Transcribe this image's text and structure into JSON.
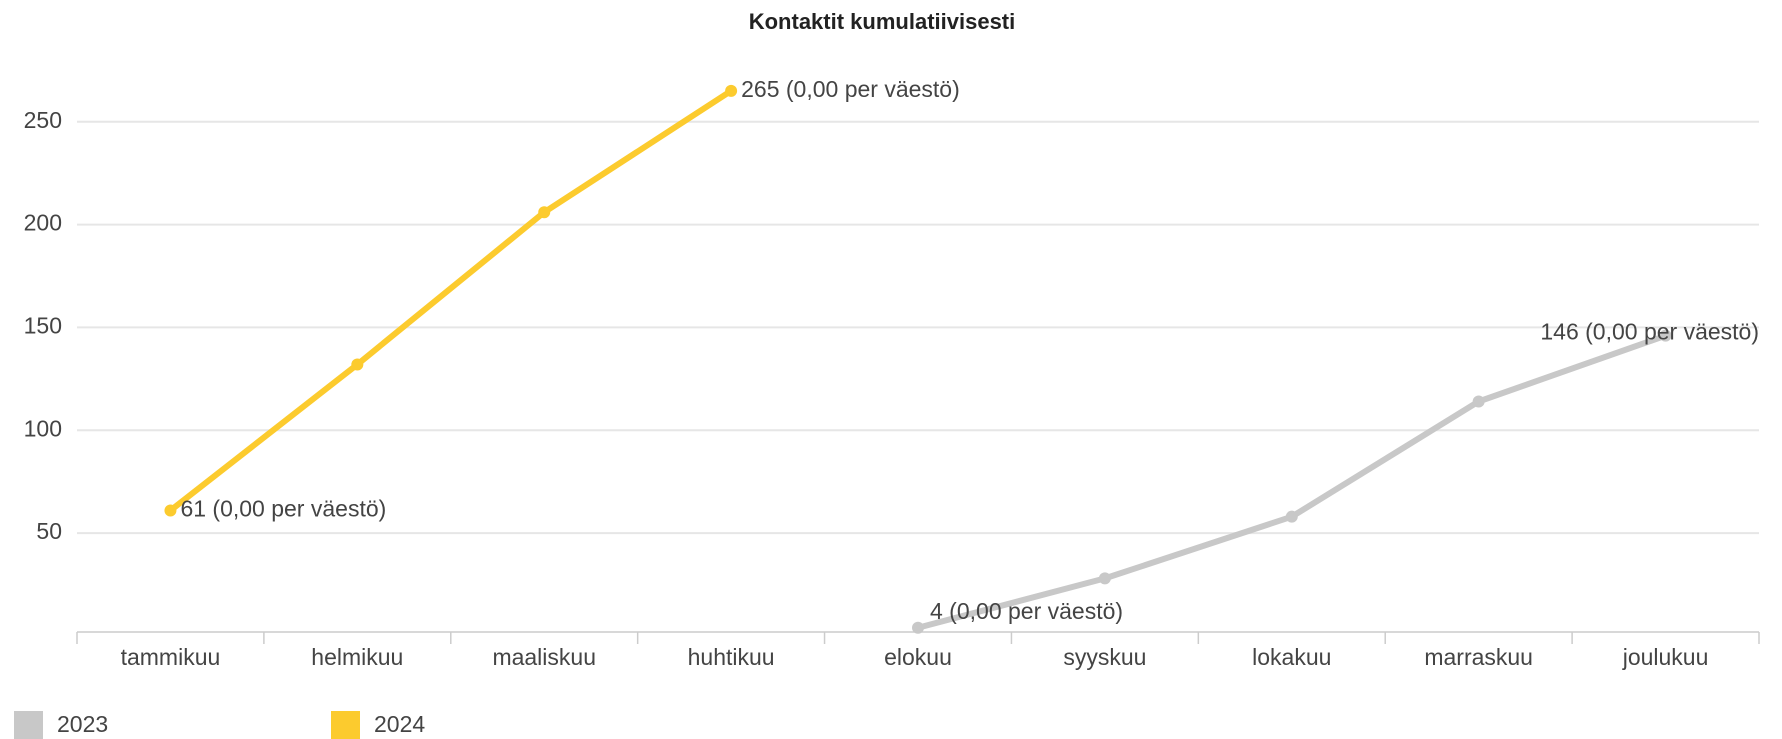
{
  "chart_data": {
    "type": "line",
    "title": "Kontaktit kumulatiivisesti",
    "categories": [
      "tammikuu",
      "helmikuu",
      "maaliskuu",
      "huhtikuu",
      "elokuu",
      "syyskuu",
      "lokakuu",
      "marraskuu",
      "joulukuu"
    ],
    "series": [
      {
        "name": "2023",
        "color": "#c8c8c8",
        "values": [
          null,
          null,
          null,
          null,
          4,
          28,
          58,
          114,
          146
        ],
        "value_labels": [
          null,
          null,
          null,
          null,
          "4 (0,00 per väestö)",
          null,
          null,
          null,
          "146 (0,00 per väestö)"
        ]
      },
      {
        "name": "2024",
        "color": "#fccb2e",
        "values": [
          61,
          132,
          206,
          265,
          null,
          null,
          null,
          null,
          null
        ],
        "value_labels": [
          "61 (0,00 per väestö)",
          null,
          null,
          "265 (0,00 per väestö)",
          null,
          null,
          null,
          null,
          null
        ]
      }
    ],
    "ylim": [
      0,
      280
    ],
    "yticks": [
      50,
      100,
      150,
      200,
      250
    ],
    "grid": true,
    "legend": "bottom-left"
  }
}
